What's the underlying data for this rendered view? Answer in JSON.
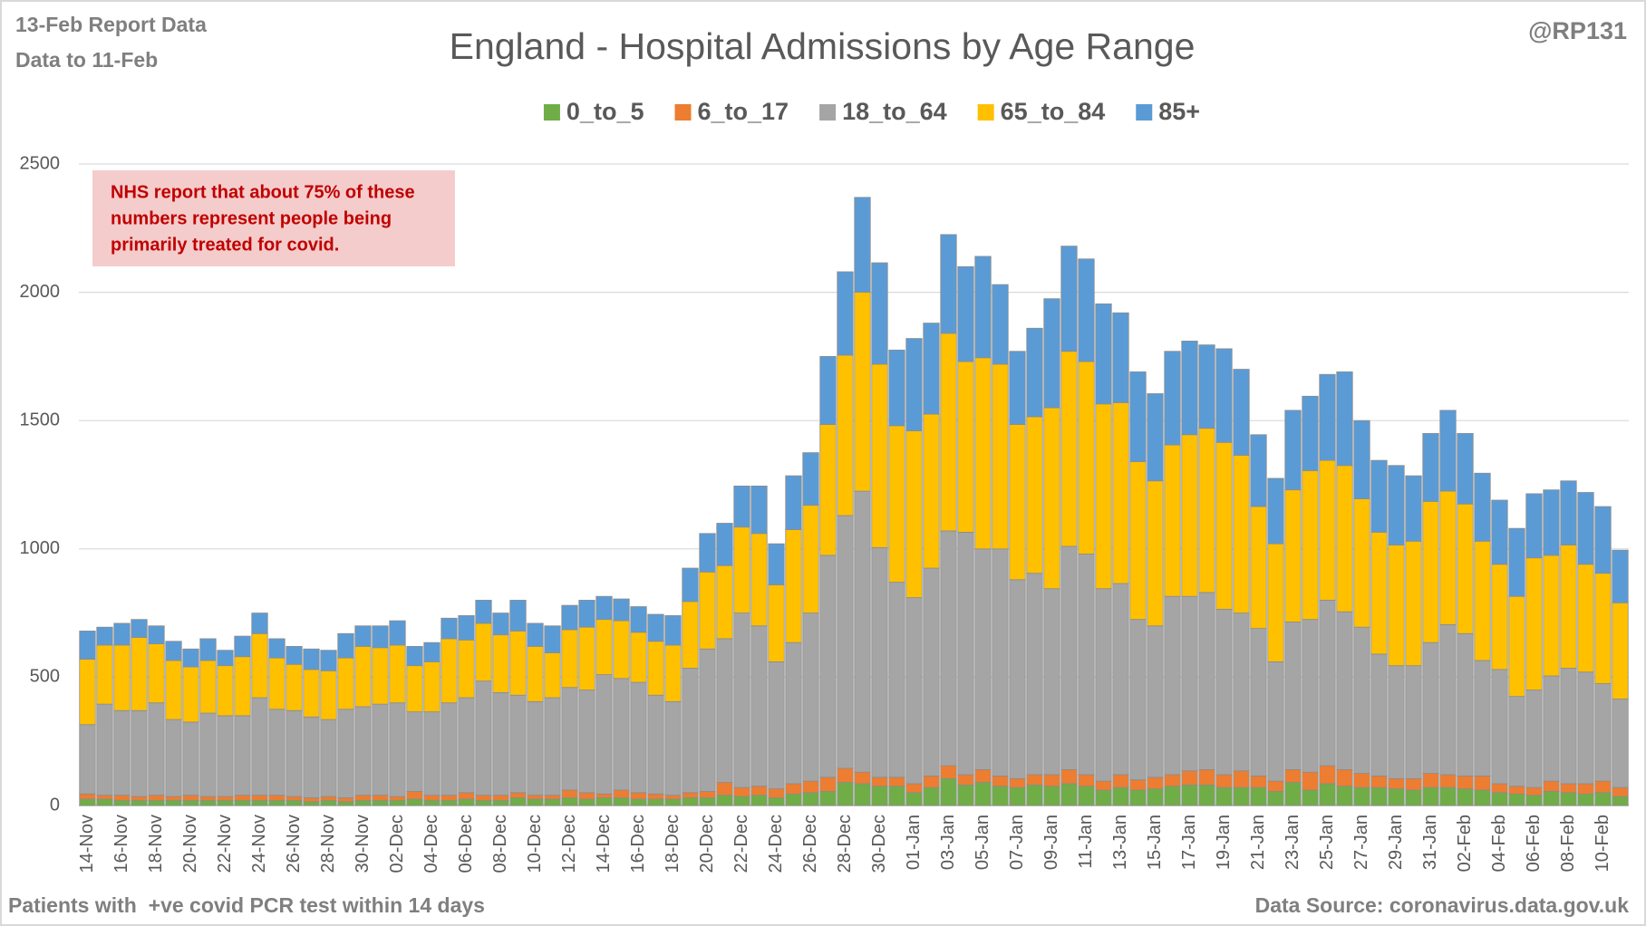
{
  "chart_data": {
    "type": "stacked_bar",
    "title": "England - Hospital Admissions by Age Range",
    "header_left": [
      "13-Feb Report Data",
      "Data to 11-Feb"
    ],
    "header_right": "@RP131",
    "annotation": [
      "NHS report that about 75% of these",
      "numbers represent people being",
      "primarily treated for covid."
    ],
    "footer_left": "Patients with  +ve covid PCR test within 14 days",
    "footer_right": "Data Source: coronavirus.data.gov.uk",
    "grid": true,
    "legend": "top",
    "ylim": [
      0,
      2500
    ],
    "yticks": [
      0,
      500,
      1000,
      1500,
      2000,
      2500
    ],
    "categories": [
      "14-Nov",
      null,
      "16-Nov",
      null,
      "18-Nov",
      null,
      "20-Nov",
      null,
      "22-Nov",
      null,
      "24-Nov",
      null,
      "26-Nov",
      null,
      "28-Nov",
      null,
      "30-Nov",
      null,
      "02-Dec",
      null,
      "04-Dec",
      null,
      "06-Dec",
      null,
      "08-Dec",
      null,
      "10-Dec",
      null,
      "12-Dec",
      null,
      "14-Dec",
      null,
      "16-Dec",
      null,
      "18-Dec",
      null,
      "20-Dec",
      null,
      "22-Dec",
      null,
      "24-Dec",
      null,
      "26-Dec",
      null,
      "28-Dec",
      null,
      "30-Dec",
      null,
      "01-Jan",
      null,
      "03-Jan",
      null,
      "05-Jan",
      null,
      "07-Jan",
      null,
      "09-Jan",
      null,
      "11-Jan",
      null,
      "13-Jan",
      null,
      "15-Jan",
      null,
      "17-Jan",
      null,
      "19-Jan",
      null,
      "21-Jan",
      null,
      "23-Jan",
      null,
      "25-Jan",
      null,
      "27-Jan",
      null,
      "29-Jan",
      null,
      "31-Jan",
      null,
      "02-Feb",
      null,
      "04-Feb",
      null,
      "06-Feb",
      null,
      "08-Feb",
      null,
      "10-Feb",
      null
    ],
    "series": [
      {
        "name": "0_to_5",
        "color": "#70ad47",
        "values": [
          25,
          25,
          20,
          20,
          20,
          20,
          20,
          20,
          20,
          20,
          20,
          20,
          20,
          15,
          20,
          15,
          20,
          20,
          20,
          25,
          20,
          20,
          25,
          20,
          20,
          30,
          25,
          25,
          30,
          25,
          30,
          30,
          25,
          25,
          25,
          30,
          30,
          40,
          35,
          40,
          30,
          45,
          50,
          55,
          90,
          85,
          75,
          75,
          50,
          70,
          105,
          80,
          90,
          75,
          70,
          80,
          75,
          85,
          75,
          60,
          70,
          60,
          65,
          75,
          80,
          80,
          70,
          70,
          70,
          55,
          90,
          60,
          85,
          75,
          70,
          70,
          65,
          60,
          70,
          70,
          65,
          60,
          50,
          45,
          40,
          55,
          50,
          45,
          50,
          35
        ]
      },
      {
        "name": "6_to_17",
        "color": "#ed7d31",
        "values": [
          20,
          15,
          20,
          15,
          20,
          15,
          20,
          15,
          15,
          20,
          20,
          20,
          15,
          15,
          15,
          15,
          20,
          20,
          15,
          30,
          20,
          20,
          25,
          20,
          20,
          20,
          15,
          15,
          30,
          25,
          15,
          30,
          25,
          20,
          15,
          20,
          25,
          50,
          35,
          35,
          35,
          40,
          45,
          55,
          55,
          45,
          35,
          35,
          35,
          45,
          50,
          40,
          50,
          40,
          35,
          40,
          45,
          55,
          45,
          35,
          50,
          40,
          45,
          45,
          55,
          60,
          50,
          65,
          45,
          40,
          50,
          70,
          70,
          65,
          55,
          45,
          40,
          45,
          55,
          50,
          50,
          55,
          35,
          30,
          30,
          40,
          35,
          40,
          45,
          35
        ]
      },
      {
        "name": "18_to_64",
        "color": "#a5a5a5",
        "values": [
          270,
          355,
          330,
          335,
          360,
          300,
          285,
          325,
          315,
          310,
          380,
          335,
          335,
          315,
          300,
          345,
          345,
          355,
          365,
          310,
          325,
          360,
          370,
          445,
          400,
          380,
          365,
          380,
          400,
          400,
          465,
          435,
          430,
          385,
          365,
          485,
          555,
          560,
          680,
          625,
          495,
          550,
          655,
          865,
          985,
          1095,
          895,
          760,
          725,
          810,
          915,
          945,
          860,
          885,
          775,
          785,
          725,
          870,
          860,
          750,
          745,
          625,
          590,
          695,
          680,
          690,
          645,
          615,
          575,
          465,
          575,
          595,
          645,
          615,
          570,
          475,
          440,
          440,
          510,
          585,
          555,
          450,
          445,
          350,
          380,
          410,
          450,
          435,
          380,
          345
        ]
      },
      {
        "name": "65_to_84",
        "color": "#ffc000",
        "values": [
          255,
          230,
          255,
          285,
          230,
          230,
          215,
          205,
          195,
          230,
          250,
          200,
          180,
          185,
          190,
          200,
          235,
          220,
          225,
          180,
          195,
          250,
          225,
          225,
          225,
          250,
          215,
          175,
          225,
          245,
          215,
          225,
          195,
          210,
          220,
          260,
          300,
          285,
          335,
          360,
          300,
          440,
          420,
          510,
          625,
          775,
          715,
          610,
          650,
          600,
          770,
          665,
          745,
          720,
          605,
          610,
          705,
          760,
          750,
          720,
          705,
          615,
          565,
          590,
          630,
          640,
          650,
          615,
          475,
          460,
          515,
          580,
          545,
          570,
          500,
          475,
          470,
          485,
          550,
          520,
          505,
          465,
          410,
          390,
          515,
          470,
          480,
          420,
          430,
          375
        ]
      },
      {
        "name": "85+",
        "color": "#5b9bd5",
        "values": [
          110,
          70,
          85,
          70,
          70,
          75,
          70,
          85,
          60,
          80,
          80,
          75,
          70,
          80,
          80,
          95,
          80,
          85,
          95,
          75,
          75,
          80,
          95,
          90,
          85,
          120,
          90,
          105,
          95,
          105,
          90,
          85,
          100,
          105,
          115,
          130,
          150,
          165,
          160,
          185,
          160,
          210,
          205,
          265,
          325,
          370,
          395,
          295,
          360,
          355,
          385,
          370,
          395,
          310,
          285,
          345,
          425,
          410,
          400,
          390,
          350,
          350,
          340,
          365,
          365,
          325,
          365,
          335,
          280,
          255,
          310,
          290,
          335,
          365,
          305,
          280,
          310,
          255,
          265,
          315,
          275,
          265,
          250,
          265,
          250,
          255,
          250,
          280,
          260,
          205
        ]
      }
    ]
  }
}
